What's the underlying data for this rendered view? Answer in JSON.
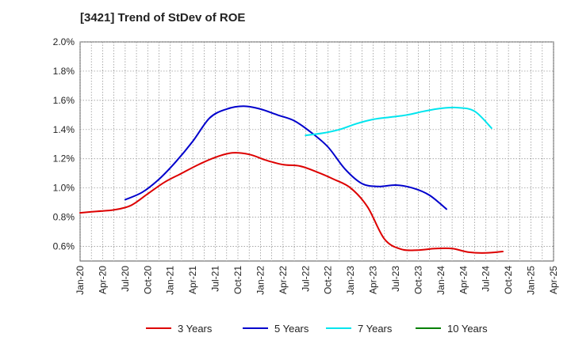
{
  "chart_data": {
    "type": "line",
    "title": "[3421]  Trend of StDev of ROE",
    "xlabel": "",
    "ylabel": "",
    "ylim": [
      0.5,
      2.0
    ],
    "y_ticks": [
      "0.6%",
      "0.8%",
      "1.0%",
      "1.2%",
      "1.4%",
      "1.6%",
      "1.8%",
      "2.0%"
    ],
    "y_tick_values": [
      0.6,
      0.8,
      1.0,
      1.2,
      1.4,
      1.6,
      1.8,
      2.0
    ],
    "x_ticks": [
      "Jan-20",
      "Apr-20",
      "Jul-20",
      "Oct-20",
      "Jan-21",
      "Apr-21",
      "Jul-21",
      "Oct-21",
      "Jan-22",
      "Apr-22",
      "Jul-22",
      "Oct-22",
      "Jan-23",
      "Apr-23",
      "Jul-23",
      "Oct-23",
      "Jan-24",
      "Apr-24",
      "Jul-24",
      "Oct-24",
      "Jan-25",
      "Apr-25"
    ],
    "grid": true,
    "legend_position": "bottom",
    "series": [
      {
        "name": "3 Years",
        "color": "#dd0000",
        "start": "Jan-20",
        "values": [
          0.83,
          0.84,
          0.85,
          0.88,
          0.96,
          1.04,
          1.1,
          1.16,
          1.21,
          1.24,
          1.23,
          1.19,
          1.16,
          1.15,
          1.11,
          1.06,
          1.0,
          0.87,
          0.65,
          0.58,
          0.575,
          0.585,
          0.585,
          0.56,
          0.555,
          0.565
        ]
      },
      {
        "name": "5 Years",
        "color": "#0000cc",
        "start": "Jul-20",
        "values": [
          0.92,
          0.97,
          1.06,
          1.18,
          1.32,
          1.48,
          1.54,
          1.56,
          1.54,
          1.5,
          1.46,
          1.38,
          1.28,
          1.13,
          1.03,
          1.01,
          1.02,
          1.0,
          0.95,
          0.855
        ]
      },
      {
        "name": "7 Years",
        "color": "#00e5ee",
        "start": "Jul-22",
        "values": [
          1.36,
          1.375,
          1.4,
          1.44,
          1.47,
          1.485,
          1.5,
          1.525,
          1.545,
          1.55,
          1.525,
          1.41
        ]
      },
      {
        "name": "10 Years",
        "color": "#008000",
        "start": "",
        "values": []
      }
    ]
  }
}
